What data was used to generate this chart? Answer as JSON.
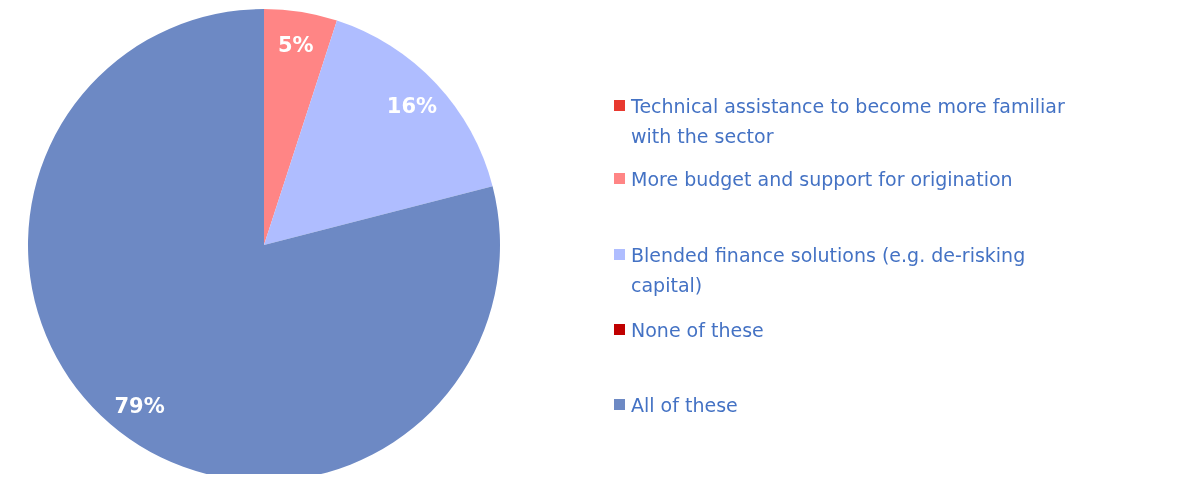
{
  "chart_data": {
    "type": "pie",
    "categories": [
      "Technical assistance to become more familiar with the sector",
      "More budget and support for origination",
      "Blended finance solutions (e.g. de-risking capital)",
      "None of these",
      "All of these"
    ],
    "values": [
      0,
      5,
      16,
      0,
      79
    ],
    "colors": [
      "#e8392f",
      "#ff8585",
      "#afbdff",
      "#c00000",
      "#6d89c4"
    ],
    "value_labels": [
      null,
      "5%",
      "16%",
      null,
      "79%"
    ],
    "legend": "right"
  }
}
